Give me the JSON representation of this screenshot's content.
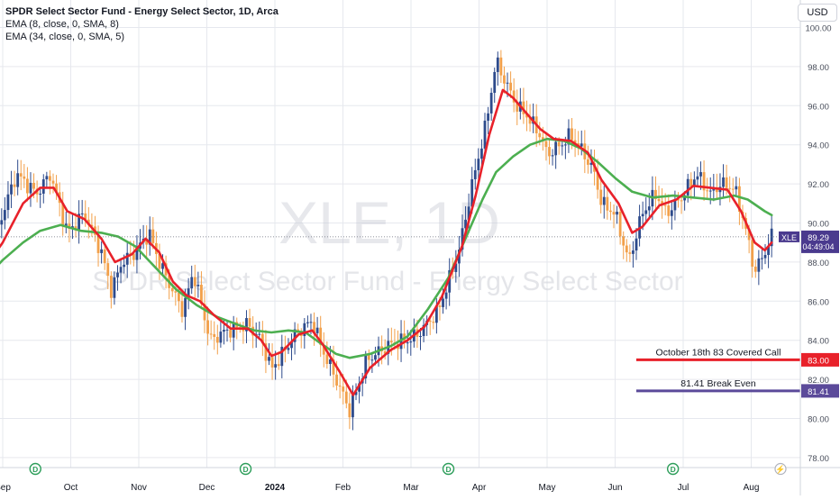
{
  "legend": {
    "title": "SPDR Select Sector Fund - Energy Select Sector, 1D, Arca",
    "ema1": "EMA (8, close, 0, SMA, 8)",
    "ema2": "EMA (34, close, 0, SMA, 5)"
  },
  "currency": "USD",
  "watermark": {
    "big": "XLE, 1D",
    "small": "SPDR Select Sector Fund - Energy Select Sector"
  },
  "colors": {
    "up": "#2e4b8c",
    "down": "#f2a04a",
    "ema_fast": "#e8212a",
    "ema_slow": "#4caf50",
    "covered_call": "#e8212a",
    "break_even": "#5b4a9a",
    "price_tag": "#4a3a8e",
    "grid": "#e6e8ee",
    "axis_text": "#4a4f5c"
  },
  "chart_data": {
    "type": "candlestick",
    "symbol": "XLE",
    "y_axis_labels": [
      "100.00",
      "98.00",
      "96.00",
      "94.00",
      "92.00",
      "90.00",
      "88.00",
      "86.00",
      "84.00",
      "82.00",
      "80.00",
      "78.00"
    ],
    "ylim": [
      77,
      101
    ],
    "x_labels": [
      "Sep",
      "Oct",
      "Nov",
      "Dec",
      "2024",
      "Feb",
      "Mar",
      "Apr",
      "May",
      "Jun",
      "Jul",
      "Aug"
    ],
    "current_price": {
      "label": "XLE",
      "price": "89.29",
      "time": "04:49:04",
      "value": 89.29
    },
    "levels": [
      {
        "label": "October 18th 83 Covered Call",
        "value": 83.0,
        "tag": "83.00",
        "color": "#e8212a"
      },
      {
        "label": "81.41 Break Even",
        "value": 81.41,
        "tag": "81.41",
        "color": "#5b4a9a"
      }
    ],
    "dividend_markers": [
      "D",
      "D",
      "D",
      "D"
    ],
    "event_marker": "⚡",
    "anchors": [
      [
        -0.3,
        87.0
      ],
      [
        0,
        90.5
      ],
      [
        0.2,
        92.5
      ],
      [
        0.5,
        91.5
      ],
      [
        0.7,
        92.5
      ],
      [
        0.95,
        89.5
      ],
      [
        1.2,
        90.5
      ],
      [
        1.45,
        88.5
      ],
      [
        1.6,
        86.5
      ],
      [
        1.75,
        88.0
      ],
      [
        1.95,
        88.5
      ],
      [
        2.15,
        89.5
      ],
      [
        2.3,
        88.0
      ],
      [
        2.5,
        86.5
      ],
      [
        2.65,
        85.5
      ],
      [
        2.8,
        87.5
      ],
      [
        3.05,
        84.0
      ],
      [
        3.3,
        84.5
      ],
      [
        3.6,
        84.8
      ],
      [
        3.8,
        84.0
      ],
      [
        3.95,
        82.5
      ],
      [
        4.05,
        83.0
      ],
      [
        4.3,
        84.3
      ],
      [
        4.55,
        85.0
      ],
      [
        4.7,
        83.5
      ],
      [
        4.9,
        82.0
      ],
      [
        5.1,
        80.4
      ],
      [
        5.35,
        83.0
      ],
      [
        5.7,
        83.8
      ],
      [
        5.95,
        84.0
      ],
      [
        6.1,
        84.3
      ],
      [
        6.4,
        85.5
      ],
      [
        6.7,
        88.5
      ],
      [
        6.9,
        92.0
      ],
      [
        7.1,
        95.0
      ],
      [
        7.25,
        98.3
      ],
      [
        7.35,
        97.5
      ],
      [
        7.55,
        96.0
      ],
      [
        7.7,
        95.5
      ],
      [
        7.9,
        94.5
      ],
      [
        8.0,
        93.5
      ],
      [
        8.2,
        94.0
      ],
      [
        8.35,
        94.5
      ],
      [
        8.55,
        93.5
      ],
      [
        8.7,
        92.5
      ],
      [
        8.8,
        91.0
      ],
      [
        9.0,
        90.5
      ],
      [
        9.2,
        88.0
      ],
      [
        9.4,
        90.5
      ],
      [
        9.6,
        91.5
      ],
      [
        9.75,
        90.5
      ],
      [
        9.95,
        91.2
      ],
      [
        10.2,
        92.5
      ],
      [
        10.4,
        91.5
      ],
      [
        10.55,
        92.0
      ],
      [
        10.75,
        91.8
      ],
      [
        10.9,
        90.0
      ],
      [
        11.05,
        87.5
      ],
      [
        11.2,
        88.5
      ],
      [
        11.3,
        89.29
      ]
    ],
    "ema_fast": [
      [
        -0.3,
        87.5
      ],
      [
        0,
        89.0
      ],
      [
        0.3,
        91.0
      ],
      [
        0.55,
        91.8
      ],
      [
        0.75,
        91.8
      ],
      [
        0.95,
        90.6
      ],
      [
        1.2,
        90.2
      ],
      [
        1.45,
        89.2
      ],
      [
        1.65,
        88.0
      ],
      [
        1.9,
        88.4
      ],
      [
        2.1,
        89.2
      ],
      [
        2.3,
        88.5
      ],
      [
        2.5,
        87.0
      ],
      [
        2.7,
        86.3
      ],
      [
        2.9,
        86.0
      ],
      [
        3.1,
        85.3
      ],
      [
        3.35,
        84.6
      ],
      [
        3.6,
        84.6
      ],
      [
        3.8,
        84.0
      ],
      [
        3.95,
        83.2
      ],
      [
        4.1,
        83.4
      ],
      [
        4.35,
        84.3
      ],
      [
        4.55,
        84.5
      ],
      [
        4.7,
        83.8
      ],
      [
        4.95,
        82.4
      ],
      [
        5.15,
        81.2
      ],
      [
        5.4,
        82.6
      ],
      [
        5.7,
        83.5
      ],
      [
        5.95,
        84.0
      ],
      [
        6.2,
        84.7
      ],
      [
        6.45,
        86.2
      ],
      [
        6.75,
        88.8
      ],
      [
        6.95,
        91.4
      ],
      [
        7.15,
        94.5
      ],
      [
        7.35,
        96.8
      ],
      [
        7.5,
        96.4
      ],
      [
        7.7,
        95.6
      ],
      [
        7.9,
        94.8
      ],
      [
        8.1,
        94.3
      ],
      [
        8.35,
        94.2
      ],
      [
        8.6,
        93.6
      ],
      [
        8.8,
        92.2
      ],
      [
        9.05,
        91.0
      ],
      [
        9.25,
        89.5
      ],
      [
        9.4,
        89.8
      ],
      [
        9.65,
        90.9
      ],
      [
        9.9,
        91.2
      ],
      [
        10.15,
        91.9
      ],
      [
        10.4,
        91.8
      ],
      [
        10.65,
        91.7
      ],
      [
        10.85,
        90.6
      ],
      [
        11.05,
        89.0
      ],
      [
        11.2,
        88.6
      ],
      [
        11.3,
        89.0
      ]
    ],
    "ema_slow": [
      [
        -0.3,
        87.0
      ],
      [
        0,
        88.1
      ],
      [
        0.3,
        89.0
      ],
      [
        0.55,
        89.6
      ],
      [
        0.85,
        89.9
      ],
      [
        1.15,
        89.6
      ],
      [
        1.45,
        89.5
      ],
      [
        1.7,
        89.3
      ],
      [
        1.95,
        88.8
      ],
      [
        2.25,
        87.7
      ],
      [
        2.55,
        86.6
      ],
      [
        2.85,
        85.8
      ],
      [
        3.15,
        85.2
      ],
      [
        3.45,
        84.8
      ],
      [
        3.7,
        84.5
      ],
      [
        3.95,
        84.4
      ],
      [
        4.2,
        84.5
      ],
      [
        4.45,
        84.4
      ],
      [
        4.65,
        83.9
      ],
      [
        4.9,
        83.3
      ],
      [
        5.1,
        83.1
      ],
      [
        5.4,
        83.3
      ],
      [
        5.7,
        83.7
      ],
      [
        5.95,
        84.2
      ],
      [
        6.25,
        85.6
      ],
      [
        6.55,
        87.2
      ],
      [
        6.8,
        89.2
      ],
      [
        7.05,
        91.2
      ],
      [
        7.25,
        92.6
      ],
      [
        7.5,
        93.4
      ],
      [
        7.75,
        94.0
      ],
      [
        8.0,
        94.3
      ],
      [
        8.25,
        94.2
      ],
      [
        8.5,
        93.8
      ],
      [
        8.75,
        93.1
      ],
      [
        9.0,
        92.3
      ],
      [
        9.25,
        91.6
      ],
      [
        9.55,
        91.3
      ],
      [
        9.85,
        91.4
      ],
      [
        10.15,
        91.3
      ],
      [
        10.45,
        91.2
      ],
      [
        10.75,
        91.4
      ],
      [
        10.95,
        91.2
      ],
      [
        11.2,
        90.6
      ],
      [
        11.3,
        90.4
      ]
    ]
  }
}
